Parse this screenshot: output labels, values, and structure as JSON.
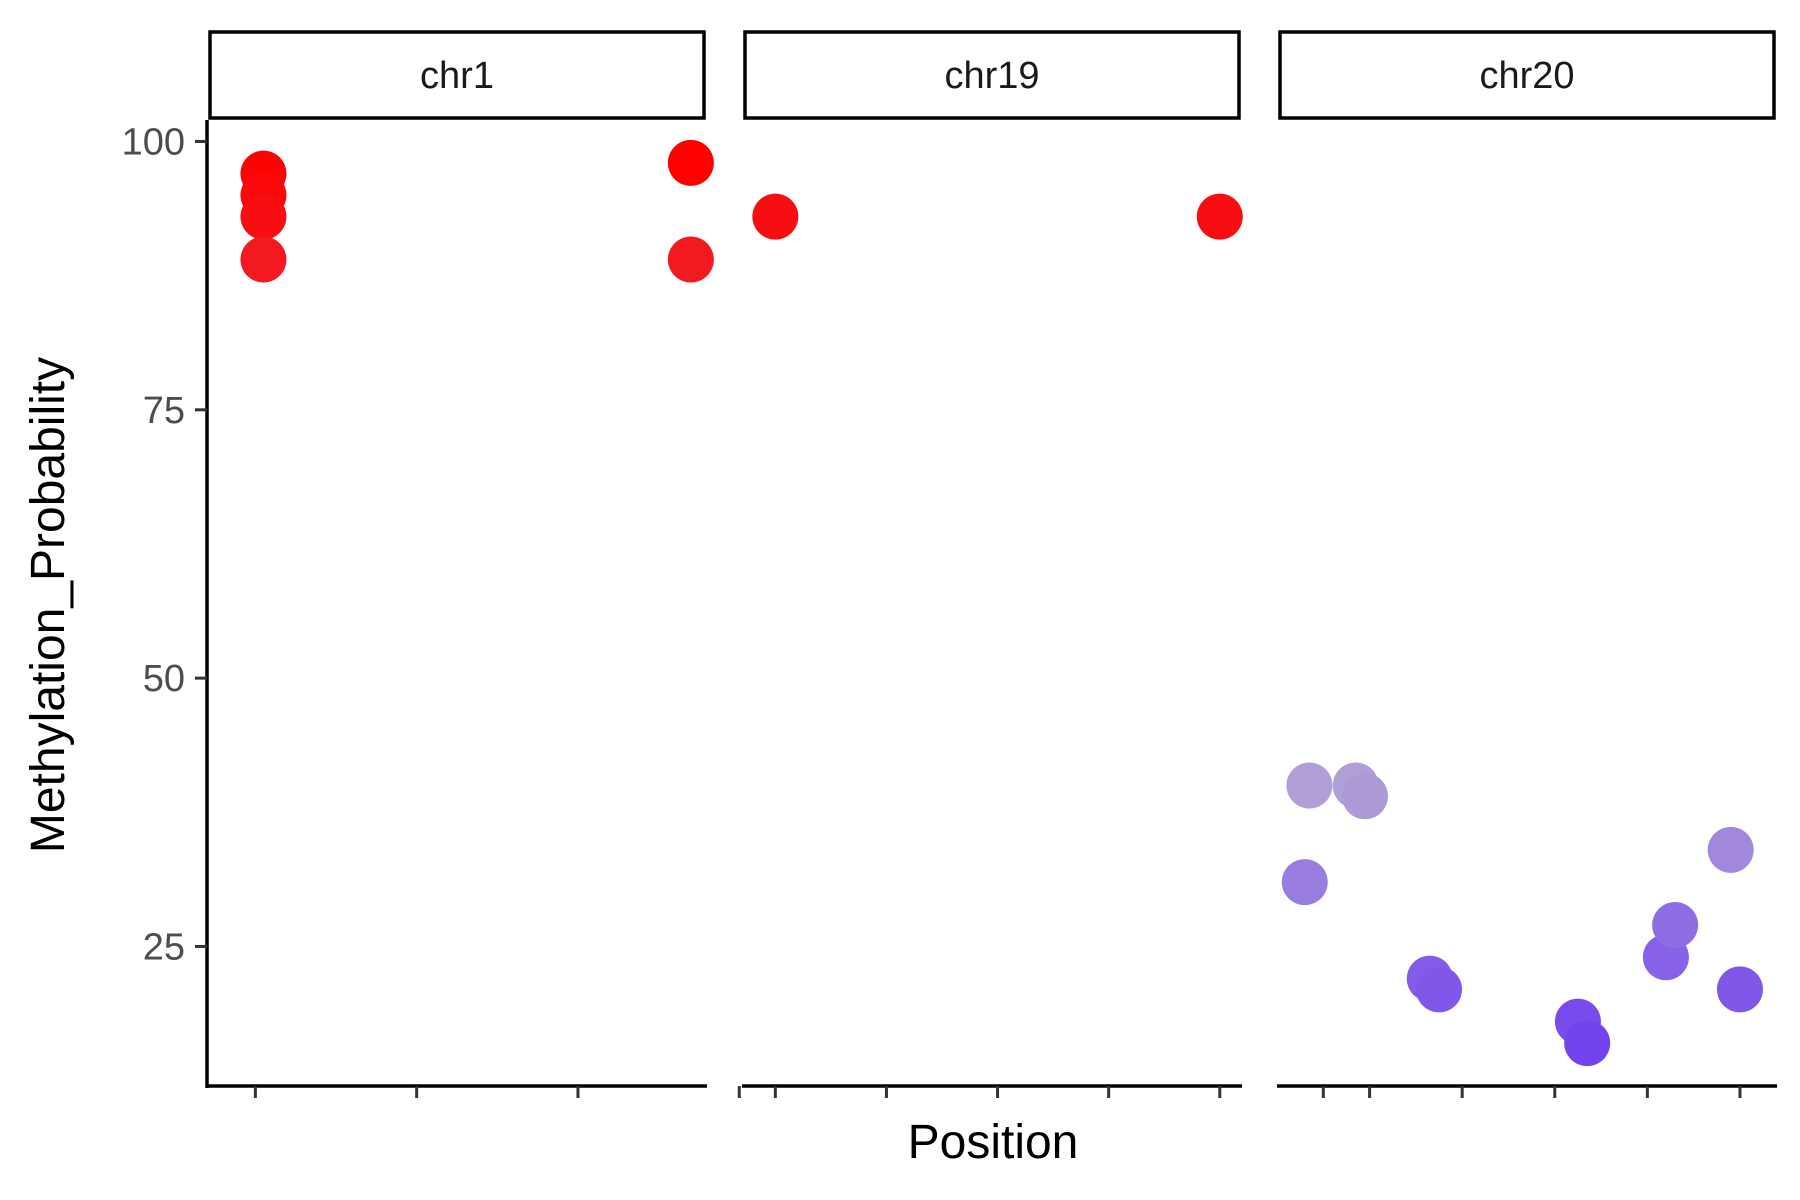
{
  "chart_data": {
    "type": "scatter",
    "xlabel": "Position",
    "ylabel": "Methylation_Probability",
    "ylim": [
      12,
      102
    ],
    "y_ticks": [
      25,
      50,
      75,
      100
    ],
    "x_tick_labels": "hidden",
    "grid": false,
    "legend": "none",
    "facets": [
      {
        "name": "chr1",
        "xlim": [
          -0.3,
          2.8
        ],
        "x_ticks": [
          0,
          1,
          2,
          3
        ],
        "points": [
          {
            "x": 0.05,
            "y": 97
          },
          {
            "x": 0.05,
            "y": 95
          },
          {
            "x": 0.05,
            "y": 93
          },
          {
            "x": 0.05,
            "y": 89
          },
          {
            "x": 2.7,
            "y": 98
          },
          {
            "x": 2.7,
            "y": 89
          }
        ]
      },
      {
        "name": "chr19",
        "xlim": [
          -0.3,
          4.2
        ],
        "x_ticks": [
          0,
          1,
          2,
          3,
          4
        ],
        "points": [
          {
            "x": 0.0,
            "y": 93
          },
          {
            "x": 4.0,
            "y": 93
          }
        ]
      },
      {
        "name": "chr20",
        "xlim": [
          0.0,
          5.4
        ],
        "x_ticks": [
          0.5,
          1,
          2,
          3,
          4,
          5
        ],
        "points": [
          {
            "x": 0.3,
            "y": 31
          },
          {
            "x": 0.35,
            "y": 40
          },
          {
            "x": 0.85,
            "y": 40
          },
          {
            "x": 0.95,
            "y": 39
          },
          {
            "x": 1.65,
            "y": 22
          },
          {
            "x": 1.75,
            "y": 21
          },
          {
            "x": 3.25,
            "y": 18
          },
          {
            "x": 3.35,
            "y": 16
          },
          {
            "x": 4.2,
            "y": 24
          },
          {
            "x": 4.3,
            "y": 27
          },
          {
            "x": 4.9,
            "y": 34
          },
          {
            "x": 5.0,
            "y": 21
          }
        ]
      }
    ],
    "color_scale": {
      "low_value": 16,
      "mid_value": 40,
      "high_value": 98,
      "low_color": "#7344ee",
      "mid_color": "#b09fd6",
      "high_color": "#ff0000"
    }
  }
}
